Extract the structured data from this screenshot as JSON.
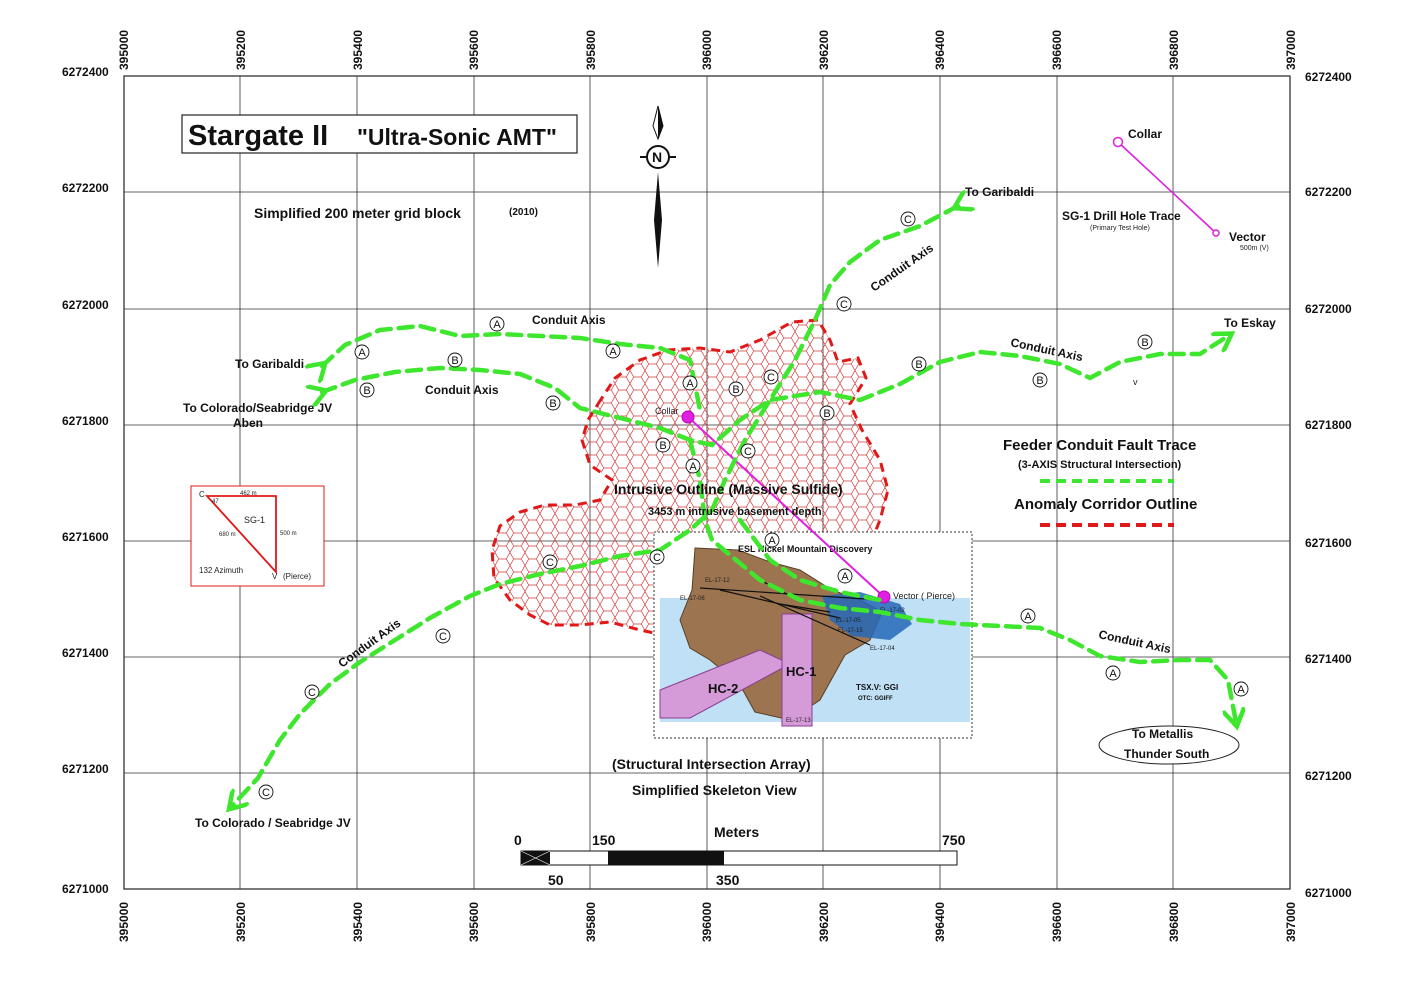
{
  "title": {
    "main": "Stargate II",
    "sub": "\"Ultra-Sonic AMT\""
  },
  "grid": {
    "subtitle": "Simplified 200 meter grid block",
    "year": "(2010)",
    "easting_ticks": [
      "395000",
      "395200",
      "395400",
      "395600",
      "395800",
      "396000",
      "396200",
      "396400",
      "396600",
      "396800",
      "397000"
    ],
    "northing_ticks": [
      "6272400",
      "6272200",
      "6272000",
      "6271800",
      "6271600",
      "6271400",
      "6271200",
      "6271000"
    ]
  },
  "labels": {
    "to_garibaldi_ne": "To Garibaldi",
    "to_garibaldi_w": "To Garibaldi",
    "to_colorado_jv": "To Colorado/Seabridge JV",
    "aben": "Aben",
    "to_colorado_sw": "To Colorado / Seabridge JV",
    "to_eskay": "To Eskay",
    "conduit_axis_a": "Conduit Axis",
    "conduit_axis_b": "Conduit Axis",
    "conduit_axis_c_ne": "Conduit Axis",
    "conduit_axis_b_e": "Conduit Axis",
    "conduit_axis_c_sw": "Conduit Axis",
    "conduit_axis_a_se": "Conduit Axis",
    "intrusive_outline": "Intrusive Outline (Massive Sulfide)",
    "basement_depth": "3453 m intrusive basement depth",
    "structural_array": "(Structural Intersection Array)",
    "skeleton_view": "Simplified Skeleton View",
    "to_metallis": "To Metallis",
    "thunder_south": "Thunder South",
    "collar_inner": "Collar",
    "vector_inner": "Vector ( Pierce)",
    "small_v": "v"
  },
  "drill_trace": {
    "collar": "Collar",
    "title": "SG-1 Drill Hole Trace",
    "subtitle": "(Primary Test Hole)",
    "vector": "Vector",
    "vector_note": "500m (V)"
  },
  "legend": {
    "feeder_title": "Feeder Conduit Fault Trace",
    "feeder_sub": "(3-AXIS Structural Intersection)",
    "anomaly_title": "Anomaly Corridor Outline",
    "feeder_color": "#3ee62e",
    "anomaly_color": "#e01818"
  },
  "triangle_inset": {
    "c": "C",
    "angle": "47",
    "top_len": "462 m",
    "name": "SG-1",
    "hyp_len": "680 m",
    "side_len": "500 m",
    "azimuth": "132 Azimuth",
    "v": "V",
    "pierce": "(Pierce)"
  },
  "scale": {
    "unit": "Meters",
    "t0": "0",
    "t50": "50",
    "t150": "150",
    "t350": "350",
    "t750": "750"
  },
  "embedded_map": {
    "discovery": "ESL Nickel Mountain Discovery",
    "hc1": "HC-1",
    "hc2": "HC-2",
    "tsx": "TSX.V: GGI",
    "otc": "OTC: GGIFF",
    "holes": [
      "EL-17-04",
      "EL-17-05",
      "EL-17-15",
      "EL-17-02",
      "EL-17-06",
      "EL-17-12",
      "EL-17-13"
    ]
  },
  "circled": {
    "a": "A",
    "b": "B",
    "c": "C"
  },
  "compass": {
    "n": "N"
  }
}
